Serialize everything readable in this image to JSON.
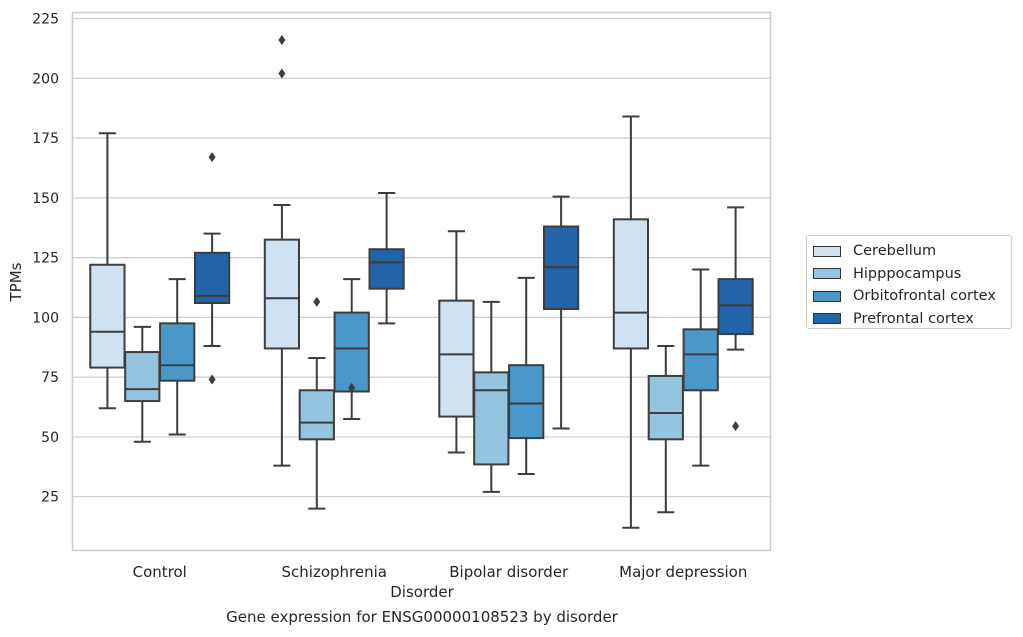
{
  "caption": "Gene expression for ENSG00000108523 by disorder",
  "chart_data": {
    "type": "box",
    "xlabel": "Disorder",
    "ylabel": "TPMs",
    "categories": [
      "Control",
      "Schizophrenia",
      "Bipolar disorder",
      "Major depression"
    ],
    "ylim": [
      2.5,
      227.5
    ],
    "yticks": [
      25,
      50,
      75,
      100,
      125,
      150,
      175,
      200,
      225
    ],
    "grid": "horizontal",
    "legend_position": "right",
    "series": [
      {
        "name": "Cerebellum",
        "color": "#d0e1f2",
        "boxes": [
          {
            "whisker_low": 62,
            "q1": 79,
            "median": 94,
            "q3": 122,
            "whisker_high": 177,
            "outliers": []
          },
          {
            "whisker_low": 38,
            "q1": 87,
            "median": 108,
            "q3": 132.5,
            "whisker_high": 147,
            "outliers": [
              202,
              216
            ]
          },
          {
            "whisker_low": 43.5,
            "q1": 58.5,
            "median": 84.5,
            "q3": 107,
            "whisker_high": 136,
            "outliers": []
          },
          {
            "whisker_low": 12,
            "q1": 87,
            "median": 102,
            "q3": 141,
            "whisker_high": 184,
            "outliers": []
          }
        ]
      },
      {
        "name": "Hipppocampus",
        "color": "#94c4df",
        "boxes": [
          {
            "whisker_low": 48,
            "q1": 65,
            "median": 70,
            "q3": 85.5,
            "whisker_high": 96,
            "outliers": []
          },
          {
            "whisker_low": 20,
            "q1": 49,
            "median": 56,
            "q3": 69.5,
            "whisker_high": 83,
            "outliers": [
              106.5
            ]
          },
          {
            "whisker_low": 27,
            "q1": 38.5,
            "median": 69.5,
            "q3": 77,
            "whisker_high": 106.5,
            "outliers": []
          },
          {
            "whisker_low": 18.5,
            "q1": 49,
            "median": 60,
            "q3": 75.5,
            "whisker_high": 88,
            "outliers": []
          }
        ]
      },
      {
        "name": "Orbitofrontal cortex",
        "color": "#4a98c9",
        "boxes": [
          {
            "whisker_low": 51,
            "q1": 73.5,
            "median": 80,
            "q3": 97.5,
            "whisker_high": 116,
            "outliers": []
          },
          {
            "whisker_low": 57.5,
            "q1": 69,
            "median": 87,
            "q3": 102,
            "whisker_high": 116,
            "outliers": [
              70.5
            ]
          },
          {
            "whisker_low": 34.5,
            "q1": 49.5,
            "median": 64,
            "q3": 80,
            "whisker_high": 116.5,
            "outliers": []
          },
          {
            "whisker_low": 38,
            "q1": 69.5,
            "median": 84.5,
            "q3": 95,
            "whisker_high": 120,
            "outliers": []
          }
        ]
      },
      {
        "name": "Prefrontal cortex",
        "color": "#2264a8",
        "boxes": [
          {
            "whisker_low": 88,
            "q1": 106,
            "median": 109,
            "q3": 127,
            "whisker_high": 135,
            "outliers": [
              74,
              167
            ]
          },
          {
            "whisker_low": 97.5,
            "q1": 112,
            "median": 123,
            "q3": 128.5,
            "whisker_high": 152,
            "outliers": []
          },
          {
            "whisker_low": 53.5,
            "q1": 103.5,
            "median": 121,
            "q3": 138,
            "whisker_high": 150.5,
            "outliers": []
          },
          {
            "whisker_low": 86.5,
            "q1": 93,
            "median": 105,
            "q3": 116,
            "whisker_high": 146,
            "outliers": [
              54.5
            ]
          }
        ]
      }
    ]
  }
}
